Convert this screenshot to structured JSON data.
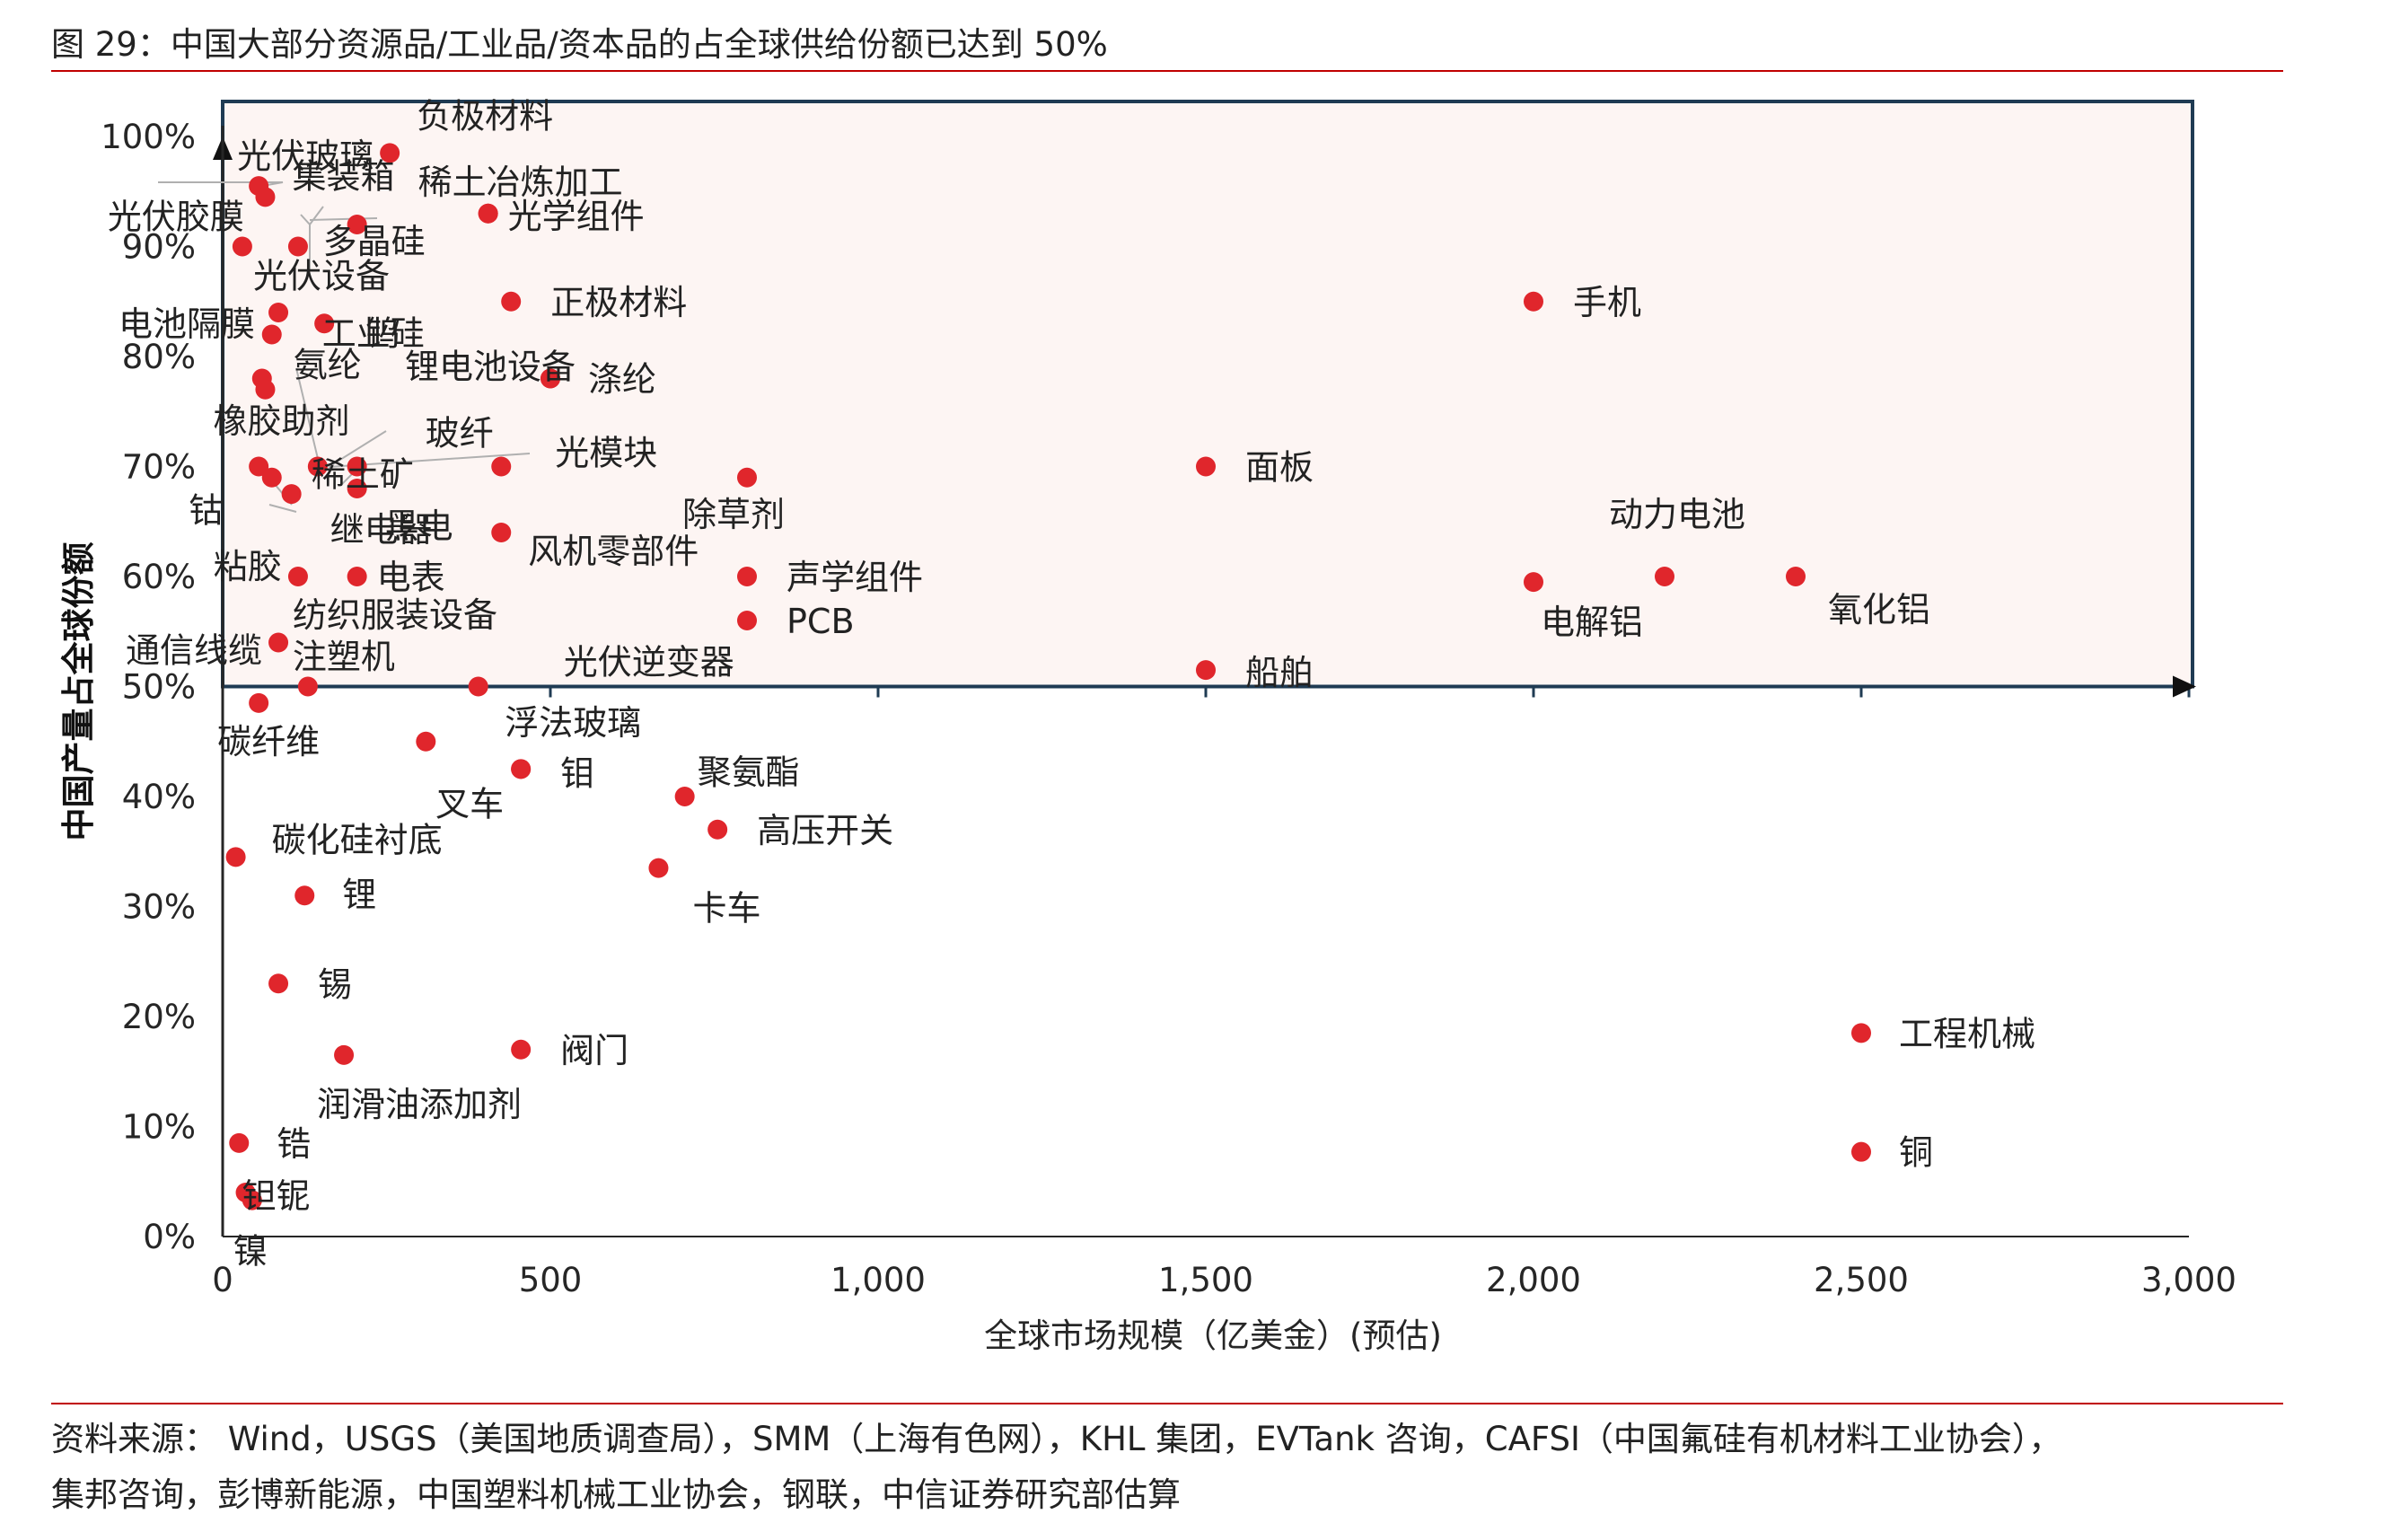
{
  "figure_title": "图 29：中国大部分资源品/工业品/资本品的占全球供给份额已达到 50%",
  "source_line1": "资料来源： Wind，USGS（美国地质调查局），SMM（上海有色网），KHL 集团，EVTank 咨询，CAFSI（中国氟硅有机材料工业协会），",
  "source_line2": "集邦咨询，彭博新能源，中国塑料机械工业协会，钢联，中信证券研究部估算",
  "colors": {
    "accent": "#c00000",
    "point": "#e0262c",
    "highlight_fill": "#fdf5f3",
    "frame": "#1f3b53",
    "axis": "#262626"
  },
  "chart_data": {
    "type": "scatter",
    "title": "",
    "xlabel": "全球市场规模（亿美金）(预估)",
    "ylabel": "中国产量占全球份额",
    "xlim": [
      0,
      3000
    ],
    "ylim": [
      0,
      1.0
    ],
    "x_ticks": [
      0,
      500,
      1000,
      1500,
      2000,
      2500,
      3000
    ],
    "x_tick_labels": [
      "0",
      "500",
      "1,000",
      "1,500",
      "2,000",
      "2,500",
      "3,000"
    ],
    "y_ticks": [
      0,
      0.1,
      0.2,
      0.3,
      0.4,
      0.5,
      0.6,
      0.7,
      0.8,
      0.9,
      1.0
    ],
    "y_tick_labels": [
      "0%",
      "10%",
      "20%",
      "30%",
      "40%",
      "50%",
      "60%",
      "70%",
      "80%",
      "90%",
      "100%"
    ],
    "highlight_region": {
      "y_from": 0.5,
      "y_to": 1.0
    },
    "points": [
      {
        "name": "负极材料",
        "x": 255,
        "y": 0.985
      },
      {
        "name": "光伏玻璃",
        "x": 55,
        "y": 0.955
      },
      {
        "name": "集装箱",
        "x": 65,
        "y": 0.945
      },
      {
        "name": "稀土冶炼加工",
        "x": 405,
        "y": 0.93
      },
      {
        "name": "光学组件",
        "x": 405,
        "y": 0.93
      },
      {
        "name": "光伏胶膜",
        "x": 30,
        "y": 0.9
      },
      {
        "name": "多晶硅",
        "x": 205,
        "y": 0.92
      },
      {
        "name": "光伏设备",
        "x": 115,
        "y": 0.9
      },
      {
        "name": "电池隔膜",
        "x": 85,
        "y": 0.84
      },
      {
        "name": "工业硅",
        "x": 75,
        "y": 0.82
      },
      {
        "name": "钨",
        "x": 155,
        "y": 0.83
      },
      {
        "name": "正极材料",
        "x": 440,
        "y": 0.85
      },
      {
        "name": "手机",
        "x": 2000,
        "y": 0.85
      },
      {
        "name": "氨纶",
        "x": 60,
        "y": 0.78
      },
      {
        "name": "锂电池设备",
        "x": 500,
        "y": 0.78
      },
      {
        "name": "涤纶",
        "x": 500,
        "y": 0.78
      },
      {
        "name": "橡胶助剂",
        "x": 65,
        "y": 0.77
      },
      {
        "name": "玻纤",
        "x": 205,
        "y": 0.7
      },
      {
        "name": "光模块",
        "x": 425,
        "y": 0.7
      },
      {
        "name": "稀土矿",
        "x": 145,
        "y": 0.7
      },
      {
        "name": "钴",
        "x": 55,
        "y": 0.7
      },
      {
        "name": "粘胶",
        "x": 75,
        "y": 0.69
      },
      {
        "name": "继电器",
        "x": 105,
        "y": 0.675
      },
      {
        "name": "黑电",
        "x": 205,
        "y": 0.68
      },
      {
        "name": "面板",
        "x": 1500,
        "y": 0.7
      },
      {
        "name": "除草剂",
        "x": 800,
        "y": 0.69
      },
      {
        "name": "风机零部件",
        "x": 425,
        "y": 0.64
      },
      {
        "name": "动力电池",
        "x": 2200,
        "y": 0.6
      },
      {
        "name": "电表",
        "x": 205,
        "y": 0.6
      },
      {
        "name": "纺织服装设备",
        "x": 115,
        "y": 0.6
      },
      {
        "name": "声学组件",
        "x": 800,
        "y": 0.6
      },
      {
        "name": "氧化铝",
        "x": 2400,
        "y": 0.6
      },
      {
        "name": "电解铝",
        "x": 2000,
        "y": 0.595
      },
      {
        "name": "PCB",
        "x": 800,
        "y": 0.56
      },
      {
        "name": "通信线缆",
        "x": 85,
        "y": 0.54
      },
      {
        "name": "注塑机",
        "x": 130,
        "y": 0.5
      },
      {
        "name": "光伏逆变器",
        "x": 390,
        "y": 0.5
      },
      {
        "name": "船舶",
        "x": 1500,
        "y": 0.515
      },
      {
        "name": "碳纤维",
        "x": 55,
        "y": 0.485
      },
      {
        "name": "浮法玻璃",
        "x": 310,
        "y": 0.45
      },
      {
        "name": "叉车",
        "x": 455,
        "y": 0.425
      },
      {
        "name": "钼",
        "x": 455,
        "y": 0.425
      },
      {
        "name": "聚氨酯",
        "x": 705,
        "y": 0.4
      },
      {
        "name": "高压开关",
        "x": 755,
        "y": 0.37
      },
      {
        "name": "碳化硅衬底",
        "x": 20,
        "y": 0.345
      },
      {
        "name": "卡车",
        "x": 665,
        "y": 0.335
      },
      {
        "name": "锂",
        "x": 125,
        "y": 0.31
      },
      {
        "name": "锡",
        "x": 85,
        "y": 0.23
      },
      {
        "name": "工程机械",
        "x": 2500,
        "y": 0.185
      },
      {
        "name": "阀门",
        "x": 455,
        "y": 0.17
      },
      {
        "name": "润滑油添加剂",
        "x": 185,
        "y": 0.165
      },
      {
        "name": "锆",
        "x": 25,
        "y": 0.085
      },
      {
        "name": "铜",
        "x": 2500,
        "y": 0.077
      },
      {
        "name": "钽铌",
        "x": 35,
        "y": 0.04
      },
      {
        "name": "镍",
        "x": 45,
        "y": 0.033
      }
    ]
  }
}
